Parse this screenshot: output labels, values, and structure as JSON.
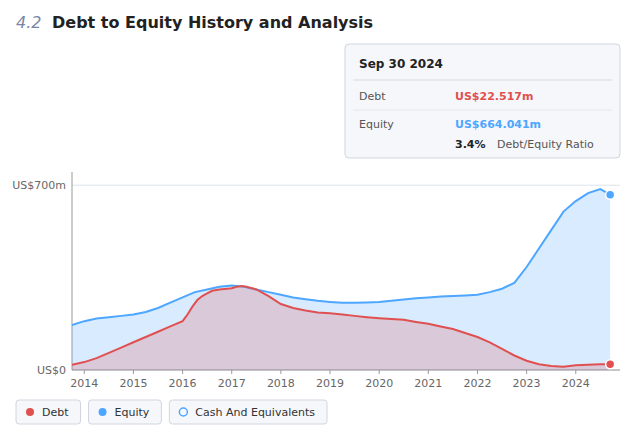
{
  "chart_data": {
    "type": "area",
    "title": "Debt to Equity History and Analysis",
    "annotations": [
      "4.2",
      "Sep 30 2024",
      "Debt",
      "US$22.517m",
      "Equity",
      "US$664.041m",
      "3.4%",
      "Debt/Equity Ratio"
    ],
    "xlim": [
      2013.75,
      2024.9
    ],
    "xticks": [
      2014,
      2015,
      2016,
      2017,
      2018,
      2019,
      2020,
      2021,
      2022,
      2023,
      2024
    ],
    "ylim": [
      0,
      750
    ],
    "yticks": [
      {
        "value": 0,
        "label": "US$0"
      },
      {
        "value": 700,
        "label": "US$700m"
      }
    ],
    "grid": true,
    "legend": "bottom",
    "series": [
      {
        "name": "Debt",
        "color": "#e05050",
        "marker": "circle",
        "x": [
          2013.75,
          2014.0,
          2014.25,
          2014.5,
          2014.75,
          2015.0,
          2015.25,
          2015.5,
          2015.75,
          2016.0,
          2016.1,
          2016.2,
          2016.3,
          2016.4,
          2016.5,
          2016.6,
          2016.75,
          2017.0,
          2017.1,
          2017.2,
          2017.3,
          2017.5,
          2017.75,
          2018.0,
          2018.25,
          2018.5,
          2018.75,
          2019.0,
          2019.25,
          2019.5,
          2019.75,
          2020.0,
          2020.25,
          2020.5,
          2020.75,
          2021.0,
          2021.25,
          2021.5,
          2021.75,
          2022.0,
          2022.25,
          2022.5,
          2022.75,
          2023.0,
          2023.25,
          2023.5,
          2023.75,
          2024.0,
          2024.25,
          2024.5,
          2024.7
        ],
        "values": [
          20,
          30,
          45,
          65,
          85,
          105,
          125,
          145,
          165,
          185,
          210,
          240,
          265,
          280,
          290,
          300,
          305,
          310,
          315,
          318,
          315,
          305,
          280,
          250,
          235,
          225,
          218,
          215,
          210,
          205,
          200,
          196,
          193,
          190,
          182,
          175,
          165,
          155,
          140,
          125,
          105,
          80,
          55,
          35,
          22,
          15,
          12,
          18,
          20,
          22,
          22
        ]
      },
      {
        "name": "Equity",
        "color": "#4da6ff",
        "marker": "circle",
        "x": [
          2013.75,
          2014.0,
          2014.25,
          2014.5,
          2014.75,
          2015.0,
          2015.25,
          2015.5,
          2015.75,
          2016.0,
          2016.25,
          2016.5,
          2016.75,
          2017.0,
          2017.25,
          2017.5,
          2017.75,
          2018.0,
          2018.25,
          2018.5,
          2018.75,
          2019.0,
          2019.25,
          2019.5,
          2019.75,
          2020.0,
          2020.25,
          2020.5,
          2020.75,
          2021.0,
          2021.25,
          2021.5,
          2021.75,
          2022.0,
          2022.25,
          2022.5,
          2022.75,
          2023.0,
          2023.25,
          2023.5,
          2023.75,
          2024.0,
          2024.25,
          2024.5,
          2024.7
        ],
        "values": [
          170,
          185,
          195,
          200,
          205,
          210,
          220,
          235,
          255,
          275,
          295,
          305,
          315,
          320,
          315,
          305,
          295,
          285,
          275,
          268,
          262,
          258,
          255,
          255,
          256,
          258,
          262,
          267,
          272,
          275,
          278,
          280,
          282,
          285,
          295,
          308,
          330,
          390,
          460,
          530,
          600,
          640,
          670,
          685,
          664
        ]
      },
      {
        "name": "Cash And Equivalents",
        "color": "#4da6ff",
        "marker": "circle_open",
        "x": [],
        "values": []
      }
    ]
  }
}
